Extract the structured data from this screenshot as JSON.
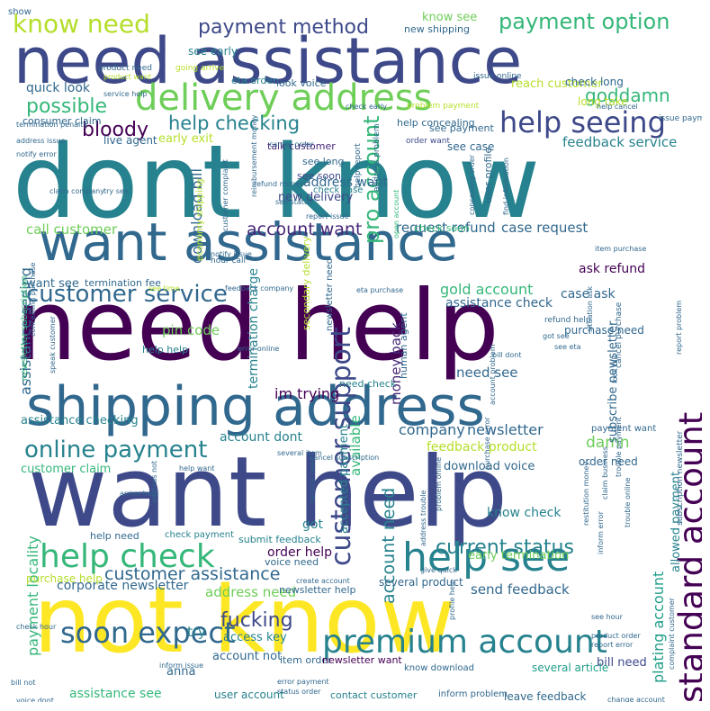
{
  "palette": {
    "yellow": "#fde725",
    "lime": "#b5de2b",
    "green": "#6ece58",
    "mint": "#35b779",
    "teal": "#1f9e89",
    "cyan": "#26828e",
    "blue": "#31688e",
    "indigo": "#3e4989",
    "violet": "#482878",
    "purple": "#440154"
  },
  "words": [
    {
      "text": "dont know",
      "color": "#26828e"
    },
    {
      "text": "need help",
      "color": "#440154"
    },
    {
      "text": "want help",
      "color": "#3e4989"
    },
    {
      "text": "not know",
      "color": "#fde725"
    },
    {
      "text": "need assistance",
      "color": "#3e4989"
    },
    {
      "text": "want assistance",
      "color": "#31688e"
    },
    {
      "text": "shipping address",
      "color": "#31688e"
    },
    {
      "text": "delivery address",
      "color": "#6ece58"
    },
    {
      "text": "premium account",
      "color": "#26828e"
    },
    {
      "text": "help see",
      "color": "#26828e"
    },
    {
      "text": "help check",
      "color": "#35b779"
    },
    {
      "text": "soon expect",
      "color": "#31688e"
    },
    {
      "text": "help seeing",
      "color": "#3e4989"
    },
    {
      "text": "customer service",
      "color": "#31688e"
    },
    {
      "text": "standard account",
      "color": "#440154"
    },
    {
      "text": "customer support",
      "color": "#3e4989"
    },
    {
      "text": "online payment",
      "color": "#26828e"
    },
    {
      "text": "know need",
      "color": "#b5de2b"
    },
    {
      "text": "payment method",
      "color": "#3e4989"
    },
    {
      "text": "payment option",
      "color": "#35b779"
    },
    {
      "text": "pro account",
      "color": "#35b779"
    },
    {
      "text": "possible",
      "color": "#35b779"
    },
    {
      "text": "goddamn",
      "color": "#35b779"
    },
    {
      "text": "bloody",
      "color": "#440154"
    },
    {
      "text": "help checking",
      "color": "#26828e"
    },
    {
      "text": "current status",
      "color": "#26828e"
    },
    {
      "text": "customer assistance",
      "color": "#31688e"
    },
    {
      "text": "fucking",
      "color": "#3e4989"
    },
    {
      "text": "account want",
      "color": "#482878"
    },
    {
      "text": "account need",
      "color": "#26828e"
    },
    {
      "text": "payment locality",
      "color": "#35b779"
    },
    {
      "text": "plating account",
      "color": "#1f9e89"
    },
    {
      "text": "gold account",
      "color": "#35b779"
    },
    {
      "text": "company",
      "color": "#31688e"
    },
    {
      "text": "newsletter",
      "color": "#31688e"
    },
    {
      "text": "damn",
      "color": "#6ece58"
    },
    {
      "text": "download bill",
      "color": "#31688e"
    },
    {
      "text": "call customer",
      "color": "#6ece58"
    },
    {
      "text": "request refund",
      "color": "#31688e"
    },
    {
      "text": "case request",
      "color": "#31688e"
    },
    {
      "text": "feedback service",
      "color": "#26828e"
    },
    {
      "text": "quick look",
      "color": "#31688e"
    },
    {
      "text": "early exit",
      "color": "#b5de2b"
    },
    {
      "text": "live agent",
      "color": "#31688e"
    },
    {
      "text": "talk customer",
      "color": "#482878"
    },
    {
      "text": "see long",
      "color": "#31688e"
    },
    {
      "text": "see soon",
      "color": "#3e4989"
    },
    {
      "text": "address want",
      "color": "#31688e"
    },
    {
      "text": "new delivery",
      "color": "#3e4989"
    },
    {
      "text": "check case",
      "color": "#26828e"
    },
    {
      "text": "ask refund",
      "color": "#440154"
    },
    {
      "text": "case ask",
      "color": "#31688e"
    },
    {
      "text": "assistance check",
      "color": "#31688e"
    },
    {
      "text": "money back",
      "color": "#482878"
    },
    {
      "text": "need see",
      "color": "#31688e"
    },
    {
      "text": "assistance checking",
      "color": "#26828e"
    },
    {
      "text": "assistance seeing",
      "color": "#31688e"
    },
    {
      "text": "pin code",
      "color": "#6ece58"
    },
    {
      "text": "termination charge",
      "color": "#26828e"
    },
    {
      "text": "im trying",
      "color": "#440154"
    },
    {
      "text": "account dont",
      "color": "#26828e"
    },
    {
      "text": "feedback product",
      "color": "#b5de2b"
    },
    {
      "text": "download voice",
      "color": "#31688e"
    },
    {
      "text": "know check",
      "color": "#26828e"
    },
    {
      "text": "order help",
      "color": "#440154"
    },
    {
      "text": "address need",
      "color": "#6ece58"
    },
    {
      "text": "send feedback",
      "color": "#31688e"
    },
    {
      "text": "early termination",
      "color": "#6ece58"
    },
    {
      "text": "corporate newsletter",
      "color": "#31688e"
    },
    {
      "text": "anna",
      "color": "#31688e"
    },
    {
      "text": "access key",
      "color": "#26828e"
    },
    {
      "text": "account not",
      "color": "#31688e"
    },
    {
      "text": "try",
      "color": "#26828e"
    },
    {
      "text": "user account",
      "color": "#26828e"
    },
    {
      "text": "assistance see",
      "color": "#35b779"
    },
    {
      "text": "leave feedback",
      "color": "#31688e"
    },
    {
      "text": "bill need",
      "color": "#3e4989"
    },
    {
      "text": "several article",
      "color": "#1f9e89"
    },
    {
      "text": "allowed payment",
      "color": "#26828e"
    },
    {
      "text": "subscribe newsletter",
      "color": "#31688e"
    },
    {
      "text": "human agent",
      "color": "#31688e"
    },
    {
      "text": "available",
      "color": "#35b779"
    },
    {
      "text": "accepted payment",
      "color": "#26828e"
    },
    {
      "text": "got",
      "color": "#26828e"
    },
    {
      "text": "purchase need",
      "color": "#31688e"
    },
    {
      "text": "consumer claim",
      "color": "#31688e"
    },
    {
      "text": "see payment",
      "color": "#31688e"
    },
    {
      "text": "see case",
      "color": "#31688e"
    },
    {
      "text": "reach customer",
      "color": "#b5de2b"
    },
    {
      "text": "check long",
      "color": "#31688e"
    },
    {
      "text": "long take",
      "color": "#b5de2b"
    },
    {
      "text": "know see",
      "color": "#6ece58"
    },
    {
      "text": "new shipping",
      "color": "#31688e"
    },
    {
      "text": "see early",
      "color": "#26828e"
    },
    {
      "text": "eta order",
      "color": "#26828e"
    },
    {
      "text": "look voice",
      "color": "#31688e"
    },
    {
      "text": "help concealing",
      "color": "#31688e"
    },
    {
      "text": "user profile",
      "color": "#31688e"
    },
    {
      "text": "check soon",
      "color": "#35b779"
    },
    {
      "text": "want see",
      "color": "#31688e"
    },
    {
      "text": "termination fee",
      "color": "#31688e"
    },
    {
      "text": "customer claim",
      "color": "#35b779"
    },
    {
      "text": "help need",
      "color": "#31688e"
    },
    {
      "text": "check payment",
      "color": "#26828e"
    },
    {
      "text": "purchase help",
      "color": "#b5de2b"
    },
    {
      "text": "submit feedback",
      "color": "#26828e"
    },
    {
      "text": "voice need",
      "color": "#31688e"
    },
    {
      "text": "newsletter help",
      "color": "#31688e"
    },
    {
      "text": "item order",
      "color": "#31688e"
    },
    {
      "text": "newsletter want",
      "color": "#440154"
    },
    {
      "text": "know download",
      "color": "#31688e"
    },
    {
      "text": "contact customer",
      "color": "#26828e"
    },
    {
      "text": "inform problem",
      "color": "#31688e"
    },
    {
      "text": "order need",
      "color": "#31688e"
    },
    {
      "text": "payment want",
      "color": "#31688e"
    },
    {
      "text": "several product",
      "color": "#31688e"
    },
    {
      "text": "need check",
      "color": "#26828e"
    },
    {
      "text": "help help",
      "color": "#26828e"
    },
    {
      "text": "newsletter subscription",
      "color": "#35b779"
    },
    {
      "text": "secondary delivery",
      "color": "#b5de2b"
    },
    {
      "text": "newsletter need",
      "color": "#31688e"
    },
    {
      "text": "economy shipping",
      "color": "#b5de2b"
    },
    {
      "text": "issue online",
      "color": "#31688e"
    },
    {
      "text": "going arrive",
      "color": "#b5de2b"
    },
    {
      "text": "product need",
      "color": "#31688e"
    },
    {
      "text": "product want",
      "color": "#b5de2b"
    },
    {
      "text": "check early",
      "color": "#31688e"
    },
    {
      "text": "problem payment",
      "color": "#b5de2b"
    },
    {
      "text": "service help",
      "color": "#31688e"
    },
    {
      "text": "help cancel",
      "color": "#31688e"
    },
    {
      "text": "issue payment",
      "color": "#31688e"
    },
    {
      "text": "order want",
      "color": "#3e4989"
    },
    {
      "text": "cancel order",
      "color": "#31688e"
    },
    {
      "text": "termination penalty",
      "color": "#31688e"
    },
    {
      "text": "address issue",
      "color": "#31688e"
    },
    {
      "text": "notify error",
      "color": "#31688e"
    },
    {
      "text": "help report",
      "color": "#31688e"
    },
    {
      "text": "address problem",
      "color": "#31688e"
    },
    {
      "text": "find information",
      "color": "#31688e"
    },
    {
      "text": "concealing order",
      "color": "#31688e"
    },
    {
      "text": "claim company",
      "color": "#31688e"
    },
    {
      "text": "customer complaint",
      "color": "#31688e"
    },
    {
      "text": "reimbursement money",
      "color": "#31688e"
    },
    {
      "text": "refund money",
      "color": "#31688e"
    },
    {
      "text": "see status",
      "color": "#31688e"
    },
    {
      "text": "report issue",
      "color": "#31688e"
    },
    {
      "text": "open account",
      "color": "#35b779"
    },
    {
      "text": "item purchase",
      "color": "#31688e"
    },
    {
      "text": "notify issue",
      "color": "#31688e"
    },
    {
      "text": "hour call",
      "color": "#31688e"
    },
    {
      "text": "try see",
      "color": "#31688e"
    },
    {
      "text": "see time",
      "color": "#b5de2b"
    },
    {
      "text": "feedback company",
      "color": "#31688e"
    },
    {
      "text": "eta purchase",
      "color": "#31688e"
    },
    {
      "text": "refund help",
      "color": "#31688e"
    },
    {
      "text": "got see",
      "color": "#31688e"
    },
    {
      "text": "see eta",
      "color": "#31688e"
    },
    {
      "text": "bill dont",
      "color": "#31688e"
    },
    {
      "text": "situation ask",
      "color": "#31688e"
    },
    {
      "text": "cancel purchase",
      "color": "#31688e"
    },
    {
      "text": "report problem",
      "color": "#31688e"
    },
    {
      "text": "concealing purchase",
      "color": "#31688e"
    },
    {
      "text": "speak customer",
      "color": "#31688e"
    },
    {
      "text": "cancel subscription",
      "color": "#31688e"
    },
    {
      "text": "several item",
      "color": "#31688e"
    },
    {
      "text": "help want",
      "color": "#31688e"
    },
    {
      "text": "service need",
      "color": "#31688e"
    },
    {
      "text": "arrive help",
      "color": "#31688e"
    },
    {
      "text": "address not",
      "color": "#31688e"
    },
    {
      "text": "problem online",
      "color": "#31688e"
    },
    {
      "text": "restitution money",
      "color": "#31688e"
    },
    {
      "text": "trouble online",
      "color": "#31688e"
    },
    {
      "text": "trouble payment",
      "color": "#31688e"
    },
    {
      "text": "subscription newsletter",
      "color": "#31688e"
    },
    {
      "text": "claim business",
      "color": "#31688e"
    },
    {
      "text": "inform error",
      "color": "#31688e"
    },
    {
      "text": "address trouble",
      "color": "#31688e"
    },
    {
      "text": "create account",
      "color": "#31688e"
    },
    {
      "text": "give quick",
      "color": "#31688e"
    },
    {
      "text": "profile help",
      "color": "#31688e"
    },
    {
      "text": "see hour",
      "color": "#31688e"
    },
    {
      "text": "product order",
      "color": "#31688e"
    },
    {
      "text": "report error",
      "color": "#31688e"
    },
    {
      "text": "inform issue",
      "color": "#31688e"
    },
    {
      "text": "bill not",
      "color": "#31688e"
    },
    {
      "text": "check hour",
      "color": "#31688e"
    },
    {
      "text": "voice dont",
      "color": "#31688e"
    },
    {
      "text": "error payment",
      "color": "#31688e"
    },
    {
      "text": "status order",
      "color": "#31688e"
    },
    {
      "text": "change account",
      "color": "#31688e"
    },
    {
      "text": "complaint customer",
      "color": "#31688e"
    },
    {
      "text": "look bill",
      "color": "#31688e"
    },
    {
      "text": "account problem",
      "color": "#31688e"
    },
    {
      "text": "purchase error",
      "color": "#31688e"
    },
    {
      "text": "error online",
      "color": "#31688e"
    },
    {
      "text": "show",
      "color": "#31688e"
    }
  ]
}
